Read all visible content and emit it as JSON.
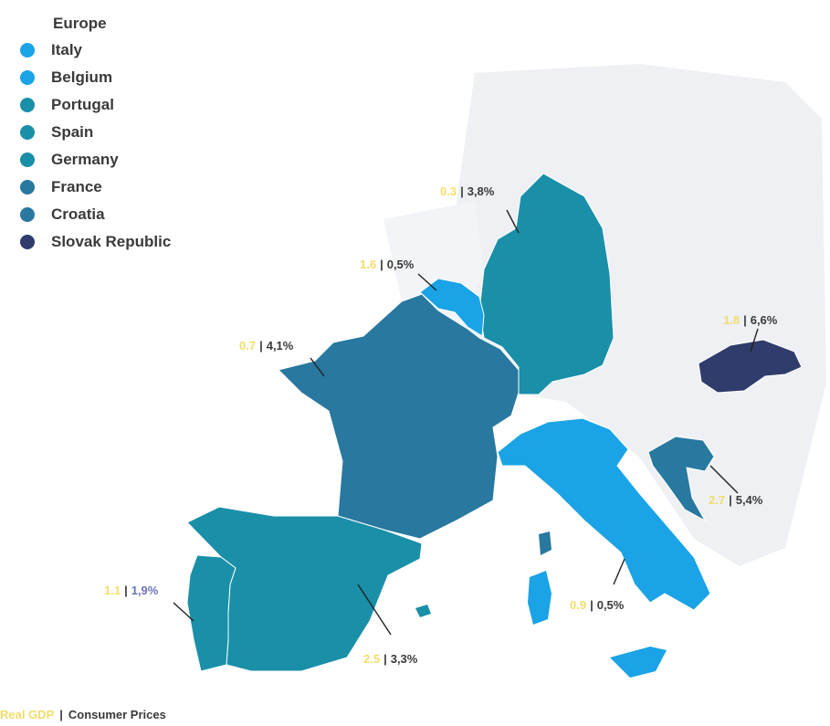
{
  "legend": {
    "title": "Europe",
    "items": [
      {
        "label": "Italy",
        "color": "#1aa3e6"
      },
      {
        "label": "Belgium",
        "color": "#1aa3e6"
      },
      {
        "label": "Portugal",
        "color": "#1a8fa8"
      },
      {
        "label": "Spain",
        "color": "#1a8fa8"
      },
      {
        "label": "Germany",
        "color": "#1a8fa8"
      },
      {
        "label": "France",
        "color": "#2878a0"
      },
      {
        "label": "Croatia",
        "color": "#2878a0"
      },
      {
        "label": "Slovak Republic",
        "color": "#2f3c6c"
      }
    ]
  },
  "labels": {
    "germany": {
      "v1": "0.3",
      "v2": "3,8%"
    },
    "belgium": {
      "v1": "1.6",
      "v2": "0,5%"
    },
    "france": {
      "v1": "0.7",
      "v2": "4,1%"
    },
    "slovakia": {
      "v1": "1.8",
      "v2": "6,6%"
    },
    "croatia": {
      "v1": "2.7",
      "v2": "5,4%"
    },
    "portugal": {
      "v1": "1.1",
      "v2": "1,9%"
    },
    "italy": {
      "v1": "0.9",
      "v2": "0,5%"
    },
    "spain": {
      "v1": "2.5",
      "v2": "3,3%"
    }
  },
  "footer": {
    "left": "Real GDP",
    "right": "Consumer Prices"
  },
  "colors": {
    "background_land": "#eef0f4",
    "label_secondary": "#f3dd6a",
    "label_primary": "#3a3a3a"
  }
}
